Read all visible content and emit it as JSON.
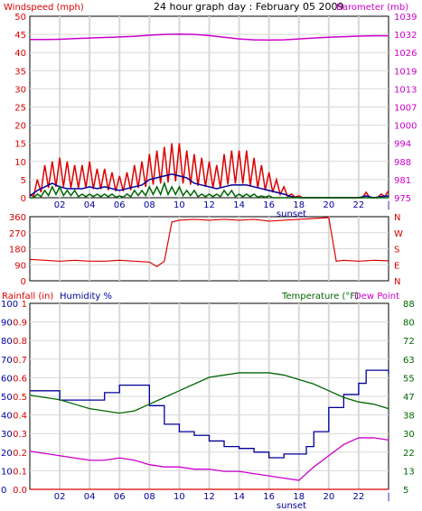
{
  "title": "24 hour graph day : February 05 2009",
  "colors": {
    "red": "#dd0000",
    "blue": "#000099",
    "green": "#006600",
    "magenta": "#cc00cc",
    "grid": "#d8d8d8",
    "frame": "#000000"
  },
  "x_axis": {
    "ticks": [
      "02",
      "04",
      "06",
      "08",
      "10",
      "12",
      "14",
      "16",
      "18",
      "20",
      "22",
      "|"
    ],
    "tick_hours": [
      2,
      4,
      6,
      8,
      10,
      12,
      14,
      16,
      18,
      20,
      22,
      24
    ],
    "annotation": "sunset",
    "annotation_hour": 17.5
  },
  "chart_data": [
    {
      "type": "line",
      "name": "wind-barometer",
      "left_label": "Windspeed (mph)",
      "right_label": "Barometer (mb)",
      "xlim": [
        0,
        24
      ],
      "ylim_left": [
        0,
        50
      ],
      "left_ticks": [
        "0",
        "5",
        "10",
        "15",
        "20",
        "25",
        "30",
        "35",
        "40",
        "45",
        "50"
      ],
      "left_tick_values": [
        0,
        5,
        10,
        15,
        20,
        25,
        30,
        35,
        40,
        45,
        50
      ],
      "ylim_right": [
        975,
        1039
      ],
      "right_ticks": [
        "975",
        "981",
        "988",
        "994",
        "1000",
        "1007",
        "1013",
        "1019",
        "1026",
        "1032",
        "1039"
      ],
      "grid": true,
      "series": [
        {
          "key": "gust",
          "color": "#dd0000",
          "style": "spiky",
          "axis": "left",
          "x": [
            0,
            0.5,
            1,
            1.5,
            2,
            2.5,
            3,
            3.5,
            4,
            4.5,
            5,
            5.5,
            6,
            6.5,
            7,
            7.5,
            8,
            8.5,
            9,
            9.5,
            10,
            10.5,
            11,
            11.5,
            12,
            12.5,
            13,
            13.5,
            14,
            14.5,
            15,
            15.5,
            16,
            16.5,
            17,
            17.5,
            18,
            18.5,
            19,
            19.5,
            20,
            20.5,
            21,
            21.5,
            22,
            22.5,
            23,
            23.5,
            24
          ],
          "y": [
            1,
            5,
            9,
            10,
            11,
            10,
            9,
            9,
            10,
            8,
            8,
            7,
            6,
            7,
            9,
            10,
            12,
            13,
            14,
            15,
            15,
            13,
            12,
            11,
            10,
            9,
            12,
            13,
            13,
            13,
            11,
            9,
            7,
            5,
            3,
            1,
            0.5,
            0,
            0,
            0,
            0,
            0,
            0,
            0,
            0,
            1.5,
            0,
            1,
            2
          ]
        },
        {
          "key": "avg",
          "color": "#000099",
          "axis": "left",
          "x": [
            0,
            0.5,
            1,
            1.5,
            2,
            2.5,
            3,
            3.5,
            4,
            4.5,
            5,
            5.5,
            6,
            6.5,
            7,
            7.5,
            8,
            8.5,
            9,
            9.5,
            10,
            10.5,
            11,
            11.5,
            12,
            12.5,
            13,
            13.5,
            14,
            14.5,
            15,
            15.5,
            16,
            16.5,
            17,
            17.5,
            18,
            18.5,
            19,
            19.5,
            20,
            20.5,
            21,
            21.5,
            22,
            22.5,
            23,
            23.5,
            24
          ],
          "y": [
            0.5,
            2,
            3,
            4,
            3,
            2.5,
            2.5,
            2.5,
            3,
            2.5,
            3,
            2.5,
            2,
            2.5,
            3,
            3.5,
            5,
            5.5,
            6,
            6.5,
            6,
            5.5,
            4,
            3.5,
            3,
            2.5,
            3,
            3.5,
            3.5,
            3.5,
            3,
            2.5,
            2,
            1.5,
            1,
            0.3,
            0,
            0,
            0,
            0,
            0,
            0,
            0,
            0,
            0,
            0.5,
            0,
            0.3,
            0.5
          ]
        },
        {
          "key": "low",
          "color": "#006600",
          "style": "spiky",
          "axis": "left",
          "x": [
            0,
            0.5,
            1,
            1.5,
            2,
            2.5,
            3,
            3.5,
            4,
            4.5,
            5,
            5.5,
            6,
            6.5,
            7,
            7.5,
            8,
            8.5,
            9,
            9.5,
            10,
            10.5,
            11,
            11.5,
            12,
            12.5,
            13,
            13.5,
            14,
            14.5,
            15,
            15.5,
            16,
            16.5,
            17,
            17.5,
            18,
            18.5,
            19,
            19.5,
            20,
            20.5,
            21,
            21.5,
            22,
            22.5,
            23,
            23.5,
            24
          ],
          "y": [
            0,
            1,
            2,
            3,
            3,
            2,
            2,
            1,
            1,
            1,
            1,
            1,
            0.5,
            1,
            2,
            2,
            3,
            3,
            4,
            3,
            3,
            2,
            2,
            1,
            1,
            1,
            2,
            2,
            1,
            1,
            1,
            0.5,
            0.5,
            0,
            0,
            0,
            0,
            0,
            0,
            0,
            0,
            0,
            0,
            0,
            0,
            0,
            0,
            0,
            0
          ]
        },
        {
          "key": "barometer",
          "color": "#cc00cc",
          "axis": "right",
          "x": [
            0,
            1,
            2,
            3,
            4,
            5,
            6,
            7,
            8,
            9,
            10,
            11,
            12,
            13,
            14,
            15,
            16,
            17,
            18,
            19,
            20,
            21,
            22,
            23,
            24
          ],
          "y": [
            1030.8,
            1030.8,
            1030.9,
            1031.1,
            1031.3,
            1031.5,
            1031.7,
            1031.9,
            1032.3,
            1032.6,
            1032.7,
            1032.6,
            1032.2,
            1031.6,
            1031.0,
            1030.7,
            1030.6,
            1030.7,
            1031.0,
            1031.3,
            1031.6,
            1031.8,
            1032.0,
            1032.1,
            1032.1
          ]
        }
      ]
    },
    {
      "type": "scatter",
      "name": "wind-direction",
      "xlim": [
        0,
        24
      ],
      "ylim": [
        0,
        360
      ],
      "left_ticks": [
        "0",
        "90",
        "180",
        "270",
        "360"
      ],
      "left_tick_values": [
        0,
        90,
        180,
        270,
        360
      ],
      "right_ticks": [
        "N",
        "E",
        "S",
        "W",
        "N"
      ],
      "grid": true,
      "series": [
        {
          "key": "direction",
          "color": "#dd0000",
          "x": [
            0,
            1,
            2,
            3,
            4,
            5,
            6,
            7,
            8,
            8.5,
            9,
            9.5,
            10,
            11,
            12,
            13,
            14,
            15,
            16,
            17,
            18,
            19,
            20,
            20.5,
            21,
            22,
            23,
            24
          ],
          "y": [
            120,
            115,
            110,
            115,
            110,
            110,
            115,
            110,
            105,
            80,
            110,
            330,
            340,
            345,
            340,
            345,
            340,
            345,
            335,
            340,
            345,
            350,
            355,
            110,
            115,
            110,
            115,
            112
          ]
        }
      ]
    },
    {
      "type": "line",
      "name": "rain-humidity-temp",
      "labels": {
        "rainfall": "Rainfall (in)",
        "humidity": "Humidity %",
        "temperature": "Temperature (°F)",
        "dewpoint": "Dew Point"
      },
      "xlim": [
        0,
        24
      ],
      "ylim_left": [
        0,
        100
      ],
      "humidity_ticks": [
        "0",
        "10",
        "20",
        "30",
        "40",
        "50",
        "60",
        "70",
        "80",
        "90",
        "100"
      ],
      "humidity_tick_values": [
        0,
        10,
        20,
        30,
        40,
        50,
        60,
        70,
        80,
        90,
        100
      ],
      "rain_ticks": [
        "0.0",
        "0.1",
        "0.2",
        "0.3",
        "0.4",
        "0.5",
        "0.6",
        "0.7",
        "0.8",
        "0.9",
        "1"
      ],
      "ylim_right": [
        5,
        88
      ],
      "right_ticks": [
        "5",
        "13",
        "22",
        "30",
        "38",
        "47",
        "55",
        "63",
        "72",
        "80",
        "88"
      ],
      "grid": true,
      "series": [
        {
          "key": "humidity",
          "color": "#000099",
          "style": "step",
          "axis": "left",
          "x": [
            0,
            1.5,
            2,
            3,
            4,
            5,
            6,
            7,
            8,
            9,
            10,
            11,
            12,
            13,
            14,
            15,
            16,
            17,
            18,
            18.5,
            19,
            20,
            21,
            22,
            22.5,
            23,
            24
          ],
          "y": [
            53,
            53,
            48,
            48,
            48,
            52,
            56,
            56,
            45,
            35,
            31,
            29,
            26,
            23,
            22,
            20,
            17,
            19,
            19,
            23,
            31,
            44,
            51,
            57,
            64,
            64,
            62
          ]
        },
        {
          "key": "temperature",
          "color": "#006600",
          "axis": "right",
          "x": [
            0,
            1,
            2,
            3,
            4,
            5,
            6,
            7,
            8,
            9,
            10,
            11,
            12,
            13,
            14,
            15,
            16,
            17,
            18,
            19,
            20,
            21,
            22,
            23,
            24
          ],
          "y": [
            47,
            46,
            45,
            43,
            41,
            40,
            39,
            40,
            43,
            46,
            49,
            52,
            55,
            56,
            57,
            57,
            57,
            56,
            54,
            52,
            49,
            46,
            44,
            43,
            41
          ]
        },
        {
          "key": "dewpoint",
          "color": "#cc00cc",
          "axis": "right",
          "x": [
            0,
            1,
            2,
            3,
            4,
            5,
            6,
            7,
            8,
            9,
            10,
            11,
            12,
            13,
            14,
            15,
            16,
            17,
            18,
            19,
            20,
            21,
            22,
            23,
            24
          ],
          "y": [
            22,
            21,
            20,
            19,
            18,
            18,
            19,
            18,
            16,
            15,
            15,
            14,
            14,
            13,
            13,
            12,
            11,
            10,
            9,
            15,
            20,
            25,
            28,
            28,
            27
          ]
        },
        {
          "key": "rainfall",
          "color": "#dd0000",
          "axis": "left",
          "x": [
            0,
            24
          ],
          "y": [
            0,
            0
          ]
        }
      ]
    }
  ]
}
